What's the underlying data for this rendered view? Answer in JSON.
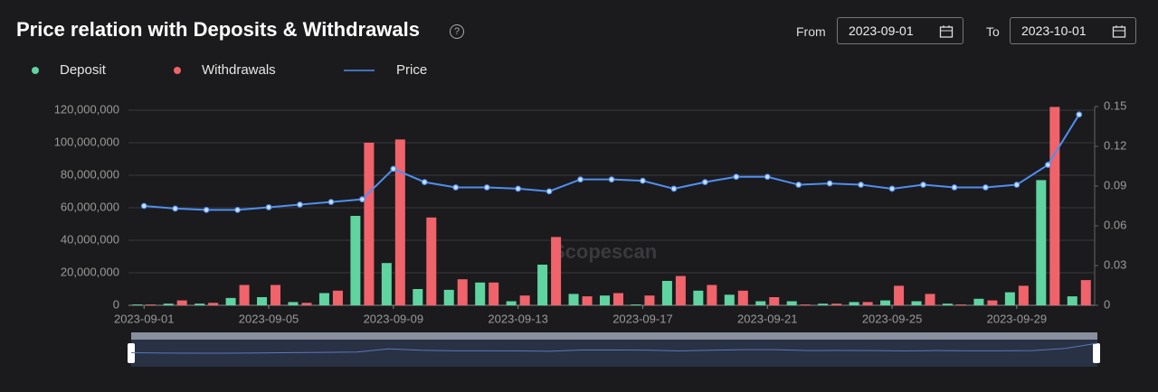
{
  "header": {
    "title": "Price relation with Deposits & Withdrawals",
    "from_label": "From",
    "from_date": "2023-09-01",
    "to_label": "To",
    "to_date": "2023-10-01"
  },
  "chart_data": {
    "type": "bar-line",
    "watermark": "Scopescan",
    "categories": [
      "2023-09-01",
      null,
      null,
      null,
      "2023-09-05",
      null,
      null,
      null,
      "2023-09-09",
      null,
      null,
      null,
      "2023-09-13",
      null,
      null,
      null,
      "2023-09-17",
      null,
      null,
      null,
      "2023-09-21",
      null,
      null,
      null,
      "2023-09-25",
      null,
      null,
      null,
      "2023-09-29",
      null,
      null
    ],
    "series": [
      {
        "name": "Deposit",
        "type": "bar",
        "color": "#5fd4a0",
        "values": [
          500000,
          1000000,
          1000000,
          4500000,
          5000000,
          2000000,
          7500000,
          55000000,
          26000000,
          10000000,
          9500000,
          14000000,
          2500000,
          25000000,
          7000000,
          6000000,
          500000,
          15000000,
          9000000,
          6500000,
          2500000,
          2500000,
          1000000,
          2000000,
          3000000,
          2500000,
          1000000,
          4000000,
          8000000,
          77000000,
          5500000
        ]
      },
      {
        "name": "Withdrawals",
        "type": "bar",
        "color": "#f0636b",
        "values": [
          500000,
          3000000,
          1500000,
          12500000,
          12500000,
          1500000,
          9000000,
          100000000,
          102000000,
          54000000,
          16000000,
          14000000,
          6000000,
          42000000,
          5500000,
          7500000,
          6000000,
          18000000,
          12500000,
          9000000,
          5000000,
          500000,
          1000000,
          2000000,
          12000000,
          7000000,
          500000,
          3000000,
          12000000,
          122000000,
          15500000
        ]
      },
      {
        "name": "Price",
        "type": "line",
        "axis": "y2",
        "color": "#4f8ff0",
        "values": [
          0.075,
          0.073,
          0.072,
          0.072,
          0.074,
          0.076,
          0.078,
          0.08,
          0.103,
          0.093,
          0.089,
          0.089,
          0.088,
          0.086,
          0.095,
          0.095,
          0.094,
          0.088,
          0.093,
          0.097,
          0.097,
          0.091,
          0.092,
          0.091,
          0.088,
          0.091,
          0.089,
          0.089,
          0.091,
          0.106,
          0.144
        ]
      }
    ],
    "ylim": [
      0,
      120000000
    ],
    "yticks": [
      0,
      {
        "value": 20000000,
        "label": "20,000,000"
      },
      {
        "value": 40000000,
        "label": "40,000,000"
      },
      {
        "value": 60000000,
        "label": "60,000,000"
      },
      {
        "value": 80000000,
        "label": "80,000,000"
      },
      {
        "value": 100000000,
        "label": "100,000,000"
      },
      {
        "value": 120000000,
        "label": "120,000,000"
      }
    ],
    "y2lim": [
      0,
      0.15
    ],
    "y2ticks": [
      0,
      0.03,
      0.06,
      0.09,
      0.12,
      0.15
    ],
    "grid": true
  }
}
